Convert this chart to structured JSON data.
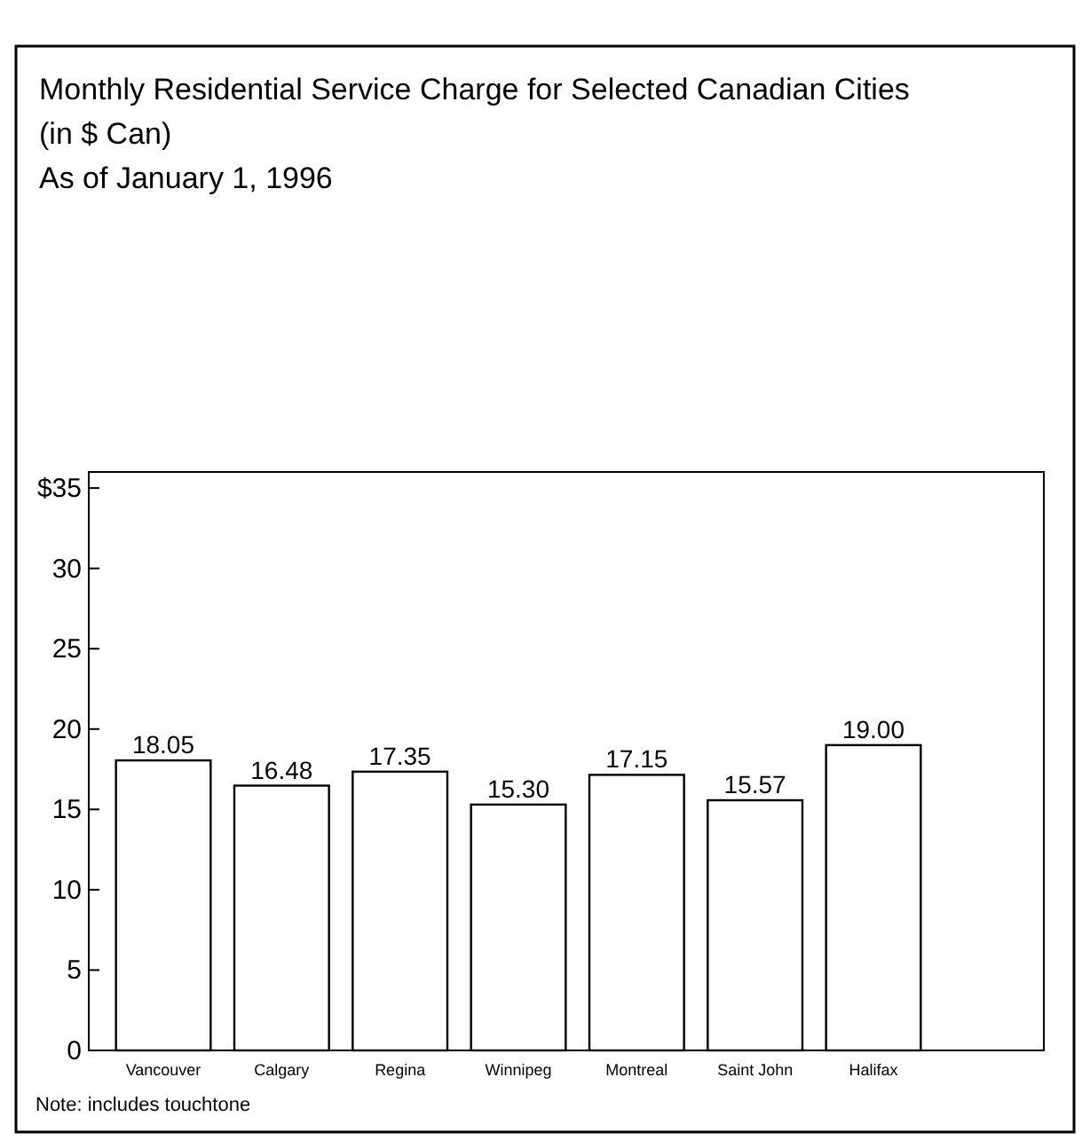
{
  "chart_data": {
    "type": "bar",
    "title": "Monthly Residential Service Charge for Selected Canadian Cities",
    "subtitle": "(in $ Can)\nAs of January 1, 1996",
    "categories": [
      "Vancouver",
      "Calgary",
      "Regina",
      "Winnipeg",
      "Montreal",
      "Saint John",
      "Halifax"
    ],
    "values": [
      18.05,
      16.48,
      17.35,
      15.3,
      17.15,
      15.57,
      19.0
    ],
    "color": "#ffffff",
    "value_labels": [
      "18.05",
      "16.48",
      "17.35",
      "15.30",
      "17.15",
      "15.57",
      "19.00"
    ],
    "ylim": [
      0,
      36
    ],
    "yticks": [
      0,
      5,
      10,
      15,
      20,
      25,
      30,
      {
        "value": 35,
        "label": "$35"
      }
    ],
    "grid": false,
    "annotations": [
      "Note:  includes touchtone"
    ]
  }
}
